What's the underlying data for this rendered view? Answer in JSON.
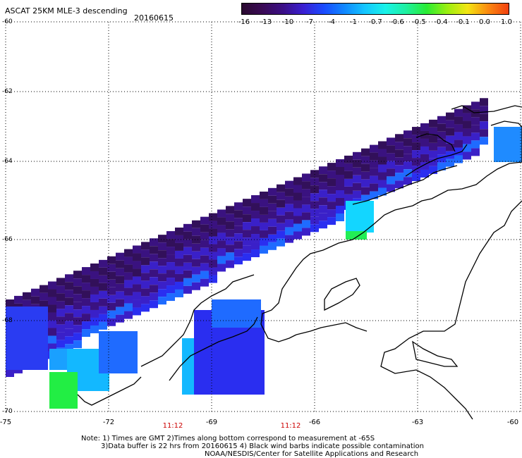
{
  "header": {
    "title": "ASCAT 25KM MLE-3 descending",
    "date": "20160615"
  },
  "colorbar": {
    "ticks": [
      "-16",
      "-13",
      "-10",
      "-7",
      "-4",
      "-1",
      "-0.7",
      "-0.6",
      "-0.5",
      "-0.4",
      "-0.1",
      "0.0",
      "1.0"
    ],
    "colors": [
      "#2a0a30",
      "#3a0a55",
      "#3b0f86",
      "#3a1fd2",
      "#1a4bff",
      "#1088ff",
      "#14c6ff",
      "#19f2e8",
      "#1ef0a0",
      "#29ec34",
      "#9aef10",
      "#f3e512",
      "#fb8a10",
      "#f24010"
    ]
  },
  "latitudes": [
    "-60",
    "-62",
    "-64",
    "-66",
    "-68",
    "-70"
  ],
  "longitudes": [
    "-75",
    "-72",
    "-69",
    "-66",
    "-63",
    "-60"
  ],
  "pass_times": [
    "11:12",
    "11:12"
  ],
  "notes": [
    "Note: 1) Times are GMT 2)Times along bottom correspond to measurement at -65S",
    "3)Data buffer is 22 hrs from 20160615 4) Black wind barbs indicate possible contamination",
    "NOAA/NESDIS/Center for Satellite Applications and Research"
  ],
  "map_layers": {
    "coastline": "black",
    "grid": "dotted",
    "data_field": "MLE-3 colored swath"
  }
}
